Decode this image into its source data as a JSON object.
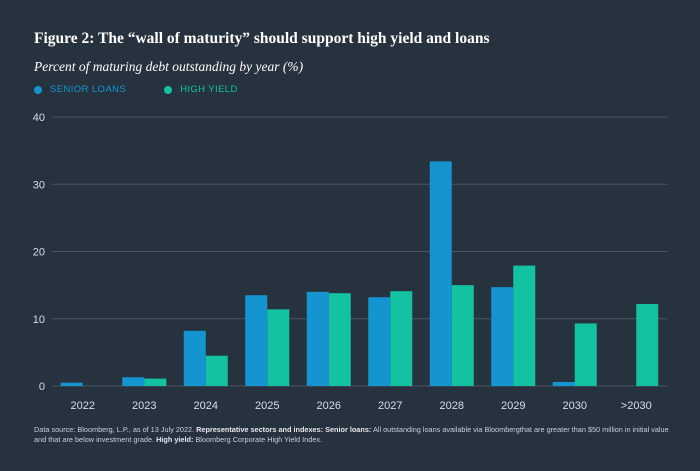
{
  "header": {
    "title": "Figure 2: The “wall of maturity” should support high yield and loans",
    "subtitle": "Percent of maturing debt outstanding by year (%)"
  },
  "footnote": {
    "source": "Data source: Bloomberg, L.P., as of 13 July 2022.",
    "rep_label": "Representative sectors and indexes:",
    "senior_label": "Senior loans:",
    "senior_text": "All outstanding loans available via Bloombergthat are greater than $50 million in initial value and that are below investment grade.",
    "hy_label": "High yield:",
    "hy_text": "Bloomberg Corporate High Yield Index."
  },
  "colors": {
    "background": "#27323f",
    "senior_loans": "#1495d0",
    "high_yield": "#13c2a0",
    "grid": "#4a5563",
    "axis_text": "#d9dee4"
  },
  "chart_data": {
    "type": "bar",
    "categories": [
      "2022",
      "2023",
      "2024",
      "2025",
      "2026",
      "2027",
      "2028",
      "2029",
      "2030",
      ">2030"
    ],
    "series": [
      {
        "name": "SENIOR LOANS",
        "values": [
          0.5,
          1.3,
          8.2,
          13.5,
          14.0,
          13.2,
          33.4,
          14.7,
          0.6,
          0
        ]
      },
      {
        "name": "HIGH YIELD",
        "values": [
          0,
          1.1,
          4.5,
          11.4,
          13.8,
          14.1,
          15.0,
          17.9,
          9.3,
          12.2
        ]
      }
    ],
    "yticks": [
      0,
      10,
      20,
      30,
      40
    ],
    "ylim": [
      0,
      40
    ],
    "grid": true,
    "legend": "top-left"
  }
}
